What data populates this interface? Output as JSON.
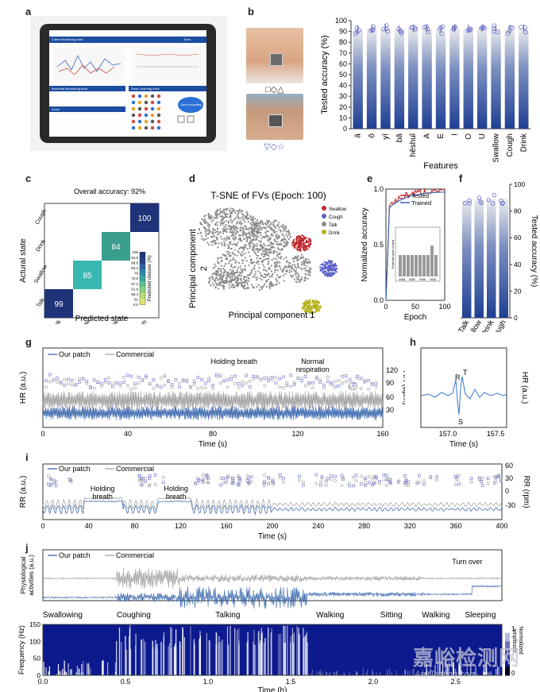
{
  "panels": {
    "a": "a",
    "b": "b",
    "c": "c",
    "d": "d",
    "e": "e",
    "f": "f",
    "g": "g",
    "h": "h",
    "i": "i",
    "j": "j"
  },
  "tablet": {
    "header_left": "Client Monitoring Area",
    "header_right": "Time",
    "section_numeric": "Numerial Monitoring Area",
    "section_deep": "Deep Learning Area",
    "section_level": "Level",
    "cloud_label": "Cloud computing"
  },
  "b_symbols": {
    "row1": "□◇△",
    "row2": "▽◇☆"
  },
  "chart_b": {
    "type": "bar",
    "categories": [
      "ā",
      "ō",
      "yī",
      "bā",
      "hēshuǐ",
      "A",
      "E",
      "I",
      "O",
      "U",
      "Swallow",
      "Cough",
      "Drink"
    ],
    "values": [
      92,
      93,
      93,
      92,
      93,
      93,
      92,
      93,
      93,
      93,
      93,
      92,
      93
    ],
    "ylabel": "Tested accuracy (%)",
    "xlabel": "Features",
    "ylim": [
      0,
      100
    ],
    "yticks": [
      "0",
      "10",
      "20",
      "30",
      "40",
      "50",
      "60",
      "70",
      "80",
      "90",
      "100"
    ]
  },
  "chart_c": {
    "type": "heatmap",
    "title": "Overall accuracy: 92%",
    "categories": [
      "Talk",
      "Swallow",
      "Drink",
      "Cough"
    ],
    "diagonal": [
      99,
      85,
      84,
      100
    ],
    "xlabel": "Predicted state",
    "ylabel": "Actural state",
    "colorbar_label": "Predicted classes (%)",
    "colorbar_ticks": [
      "100",
      "94.8",
      "88.9",
      "83.4",
      "78",
      "72.6",
      "67.2",
      "61.8",
      "56.4",
      "51",
      "0.0"
    ]
  },
  "chart_d": {
    "type": "scatter",
    "title": "T-SNE of FVs (Epoch: 100)",
    "xlabel": "Principal component 1",
    "ylabel_1": "Principal component",
    "ylabel_2": "2",
    "legend": [
      {
        "name": "Swallow",
        "color": "#c0272d"
      },
      {
        "name": "Cough",
        "color": "#5b5fc7"
      },
      {
        "name": "Talk",
        "color": "#8a8a8a"
      },
      {
        "name": "Drink",
        "color": "#b5b21a"
      }
    ]
  },
  "chart_e": {
    "type": "line",
    "series": [
      {
        "name": "Tested",
        "color": "#c0272d"
      },
      {
        "name": "Trained",
        "color": "#2f63b6"
      }
    ],
    "xlabel": "Epoch",
    "ylabel": "Normalized accuracy",
    "xticks": [
      "0",
      "50",
      "100"
    ],
    "yticks": [
      "0.0",
      "0.5",
      "1.0"
    ],
    "inset_ylabel": "Predicted value of input",
    "inset_xticks": [
      "0068",
      "0082",
      "0096",
      "0036"
    ]
  },
  "chart_f": {
    "type": "bar",
    "categories": [
      "Talk",
      "Swallow",
      "Drink",
      "Cough"
    ],
    "values": [
      88,
      89,
      89,
      89
    ],
    "ylabel": "Tested accuracy (%)",
    "ylim": [
      0,
      100
    ],
    "yticks": [
      "0",
      "20",
      "40",
      "60",
      "80",
      "100"
    ]
  },
  "chart_g": {
    "type": "line",
    "legend": [
      "Our patch",
      "Commercial"
    ],
    "annotations": [
      "Holding breath",
      "Normal",
      "respiration"
    ],
    "xlabel": "Time (s)",
    "ylabel_left": "HR (a.u.)",
    "ylabel_right": "HR (bpm)",
    "xticks": [
      "0",
      "40",
      "80",
      "120",
      "160"
    ],
    "yticks_right": [
      "30",
      "60",
      "90",
      "120"
    ]
  },
  "chart_h": {
    "type": "line",
    "labels": [
      "R",
      "T",
      "S"
    ],
    "xlabel": "Time (s)",
    "ylabel": "HR (a.u.)",
    "xticks": [
      "157.0",
      "157.5"
    ]
  },
  "chart_i": {
    "type": "line",
    "legend": [
      "Our patch",
      "Commercial"
    ],
    "annotations": [
      [
        "Holding",
        "breath"
      ],
      [
        "Holding",
        "breath"
      ]
    ],
    "xlabel": "Time (s)",
    "ylabel_left": "RR (a.u.)",
    "ylabel_right": "RR (rpm)",
    "xticks": [
      "0",
      "40",
      "80",
      "120",
      "160",
      "200",
      "240",
      "280",
      "320",
      "360",
      "400"
    ],
    "yticks_right": [
      "60",
      "30",
      "0",
      "-30"
    ]
  },
  "chart_j": {
    "type": "line",
    "legend": [
      "Our patch",
      "Commercial"
    ],
    "annotation": "Turn over",
    "ylabel_top_1": "Physiological",
    "ylabel_top_2": "activities (a.u.)",
    "activities": [
      "Swallowing",
      "Coughing",
      "Talking",
      "Walking",
      "Sitting",
      "Walking",
      "Sleeping"
    ],
    "ylabel_bottom": "Frequency (Hz)",
    "yticks_bottom": [
      "0",
      "50",
      "100",
      "150"
    ],
    "xticks": [
      "0.0",
      "0.5",
      "1.0",
      "1.5",
      "2.0",
      "2.5"
    ],
    "xlabel": "Time (h)",
    "colorbar_label_1": "Normalized",
    "colorbar_label_2": "amplitude",
    "colorbar_ticks": [
      "1",
      "0"
    ]
  },
  "watermark": {
    "line1": "嘉峪检测网",
    "line2": "AnyTesting.com"
  }
}
